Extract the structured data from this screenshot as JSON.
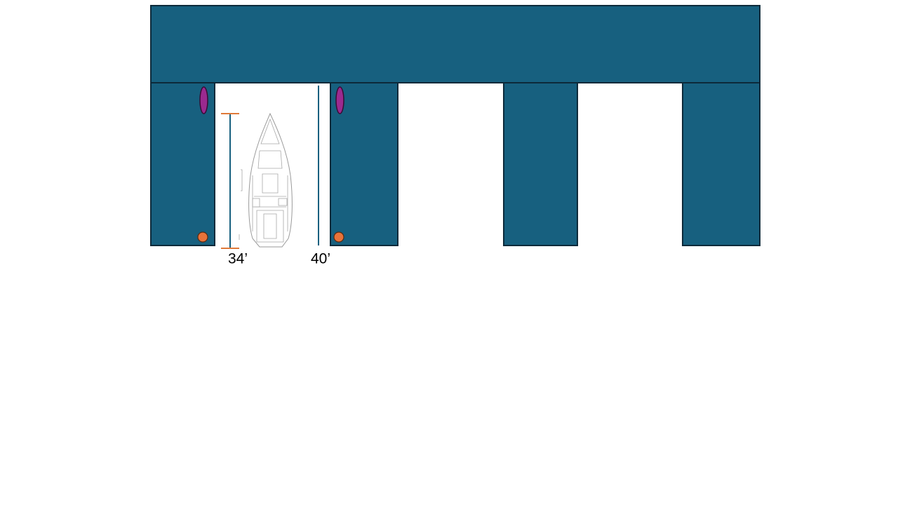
{
  "dimensions": [
    {
      "label": "34’"
    },
    {
      "label": "40’"
    }
  ]
}
